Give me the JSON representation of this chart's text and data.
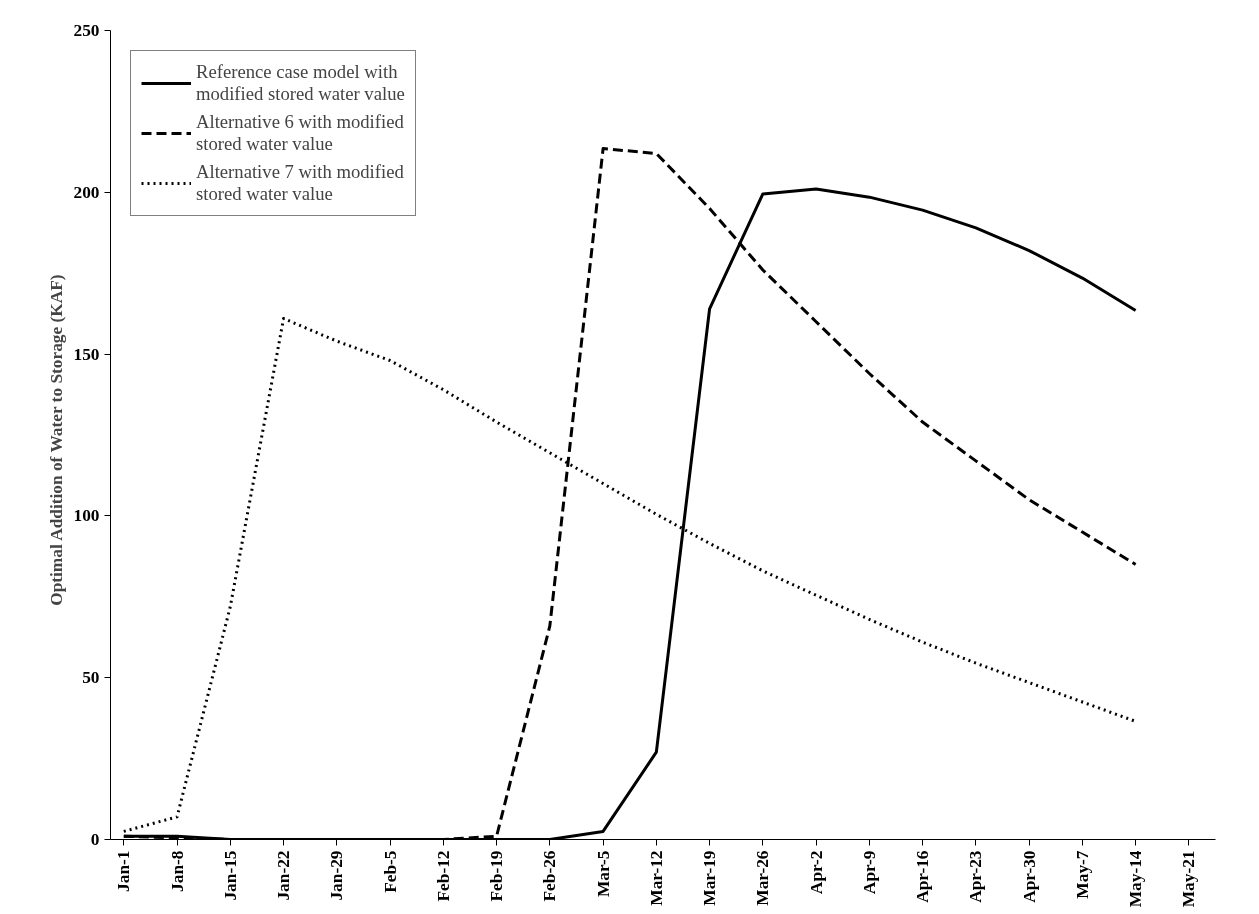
{
  "chart_data": {
    "type": "line",
    "ylabel": "Optimal Addition of Water to  Storage  (KAF)",
    "categories": [
      "Jan-1",
      "Jan-8",
      "Jan-15",
      "Jan-22",
      "Jan-29",
      "Feb-5",
      "Feb-12",
      "Feb-19",
      "Feb-26",
      "Mar-5",
      "Mar-12",
      "Mar-19",
      "Mar-26",
      "Apr-2",
      "Apr-9",
      "Apr-16",
      "Apr-23",
      "Apr-30",
      "May-7",
      "May-14",
      "May-21"
    ],
    "series": [
      {
        "name": "Reference case model with modified stored water value",
        "color": "#000000",
        "line_style": "solid",
        "values": [
          1,
          1,
          0,
          0,
          0,
          0,
          0,
          0,
          0,
          2.5,
          27,
          164,
          199.5,
          201,
          198.5,
          194.5,
          189,
          182,
          173.5,
          163.5,
          null
        ]
      },
      {
        "name": "Alternative 6 with modified stored water value",
        "color": "#000000",
        "line_style": "dashed",
        "values": [
          1,
          0.5,
          0,
          0,
          0,
          0,
          0,
          1,
          66,
          213.5,
          212,
          195,
          176,
          160,
          144,
          129,
          117,
          105,
          95,
          85,
          null
        ]
      },
      {
        "name": "Alternative 7 with modified stored water value",
        "color": "#000000",
        "line_style": "dotted",
        "values": [
          2.5,
          7,
          72,
          161,
          154,
          148,
          139,
          129,
          119.5,
          110,
          100.5,
          91.5,
          83,
          75.5,
          68,
          61,
          54.5,
          48.5,
          42.5,
          36.5,
          null
        ]
      }
    ],
    "ylim": [
      0,
      250
    ],
    "yticks": [
      0,
      50,
      100,
      150,
      200,
      250
    ],
    "grid": false,
    "legend": "top left",
    "marker": "none"
  }
}
